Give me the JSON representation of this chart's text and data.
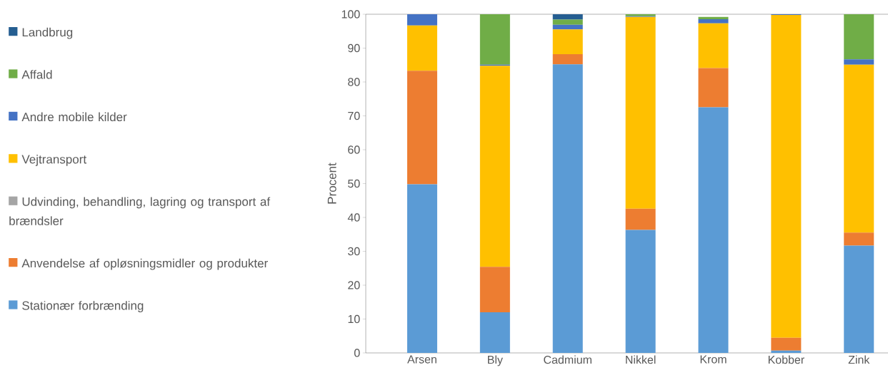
{
  "chart_data": {
    "type": "bar",
    "stacked": true,
    "ylabel": "Procent",
    "categories": [
      "Arsen",
      "Bly",
      "Cadmium",
      "Nikkel",
      "Krom",
      "Kobber",
      "Zink"
    ],
    "series": [
      {
        "name": "Stationær forbrænding",
        "color": "#5b9bd5",
        "values": [
          49.8,
          12,
          85.2,
          36.3,
          72.5,
          0.7,
          31.7
        ]
      },
      {
        "name": "Anvendelse af opløsningsmidler og produkter",
        "color": "#ed7d31",
        "values": [
          33.5,
          13.4,
          3,
          6.3,
          11.6,
          3.8,
          3.8
        ]
      },
      {
        "name": "Udvinding, behandling, lagring og transport af brændsler",
        "color": "#a5a5a5",
        "values": [
          0,
          0,
          0,
          0,
          0,
          0,
          0
        ]
      },
      {
        "name": "Vejtransport",
        "color": "#ffc000",
        "values": [
          13.4,
          59.4,
          7.3,
          56.6,
          13.2,
          95.3,
          49.6
        ]
      },
      {
        "name": "Andre mobile kilder",
        "color": "#4472c4",
        "values": [
          3.3,
          0.3,
          1.4,
          0.2,
          1.2,
          0.2,
          1.6
        ]
      },
      {
        "name": "Affald",
        "color": "#70ad47",
        "values": [
          0,
          14.9,
          1.5,
          0.6,
          0.7,
          0,
          13.3
        ]
      },
      {
        "name": "Landbrug",
        "color": "#255e91",
        "values": [
          0,
          0,
          1.6,
          0,
          0,
          0,
          0
        ]
      }
    ],
    "ylim": [
      0,
      100
    ],
    "yticks": [
      0,
      10,
      20,
      30,
      40,
      50,
      60,
      70,
      80,
      90,
      100
    ],
    "legend": "left"
  }
}
